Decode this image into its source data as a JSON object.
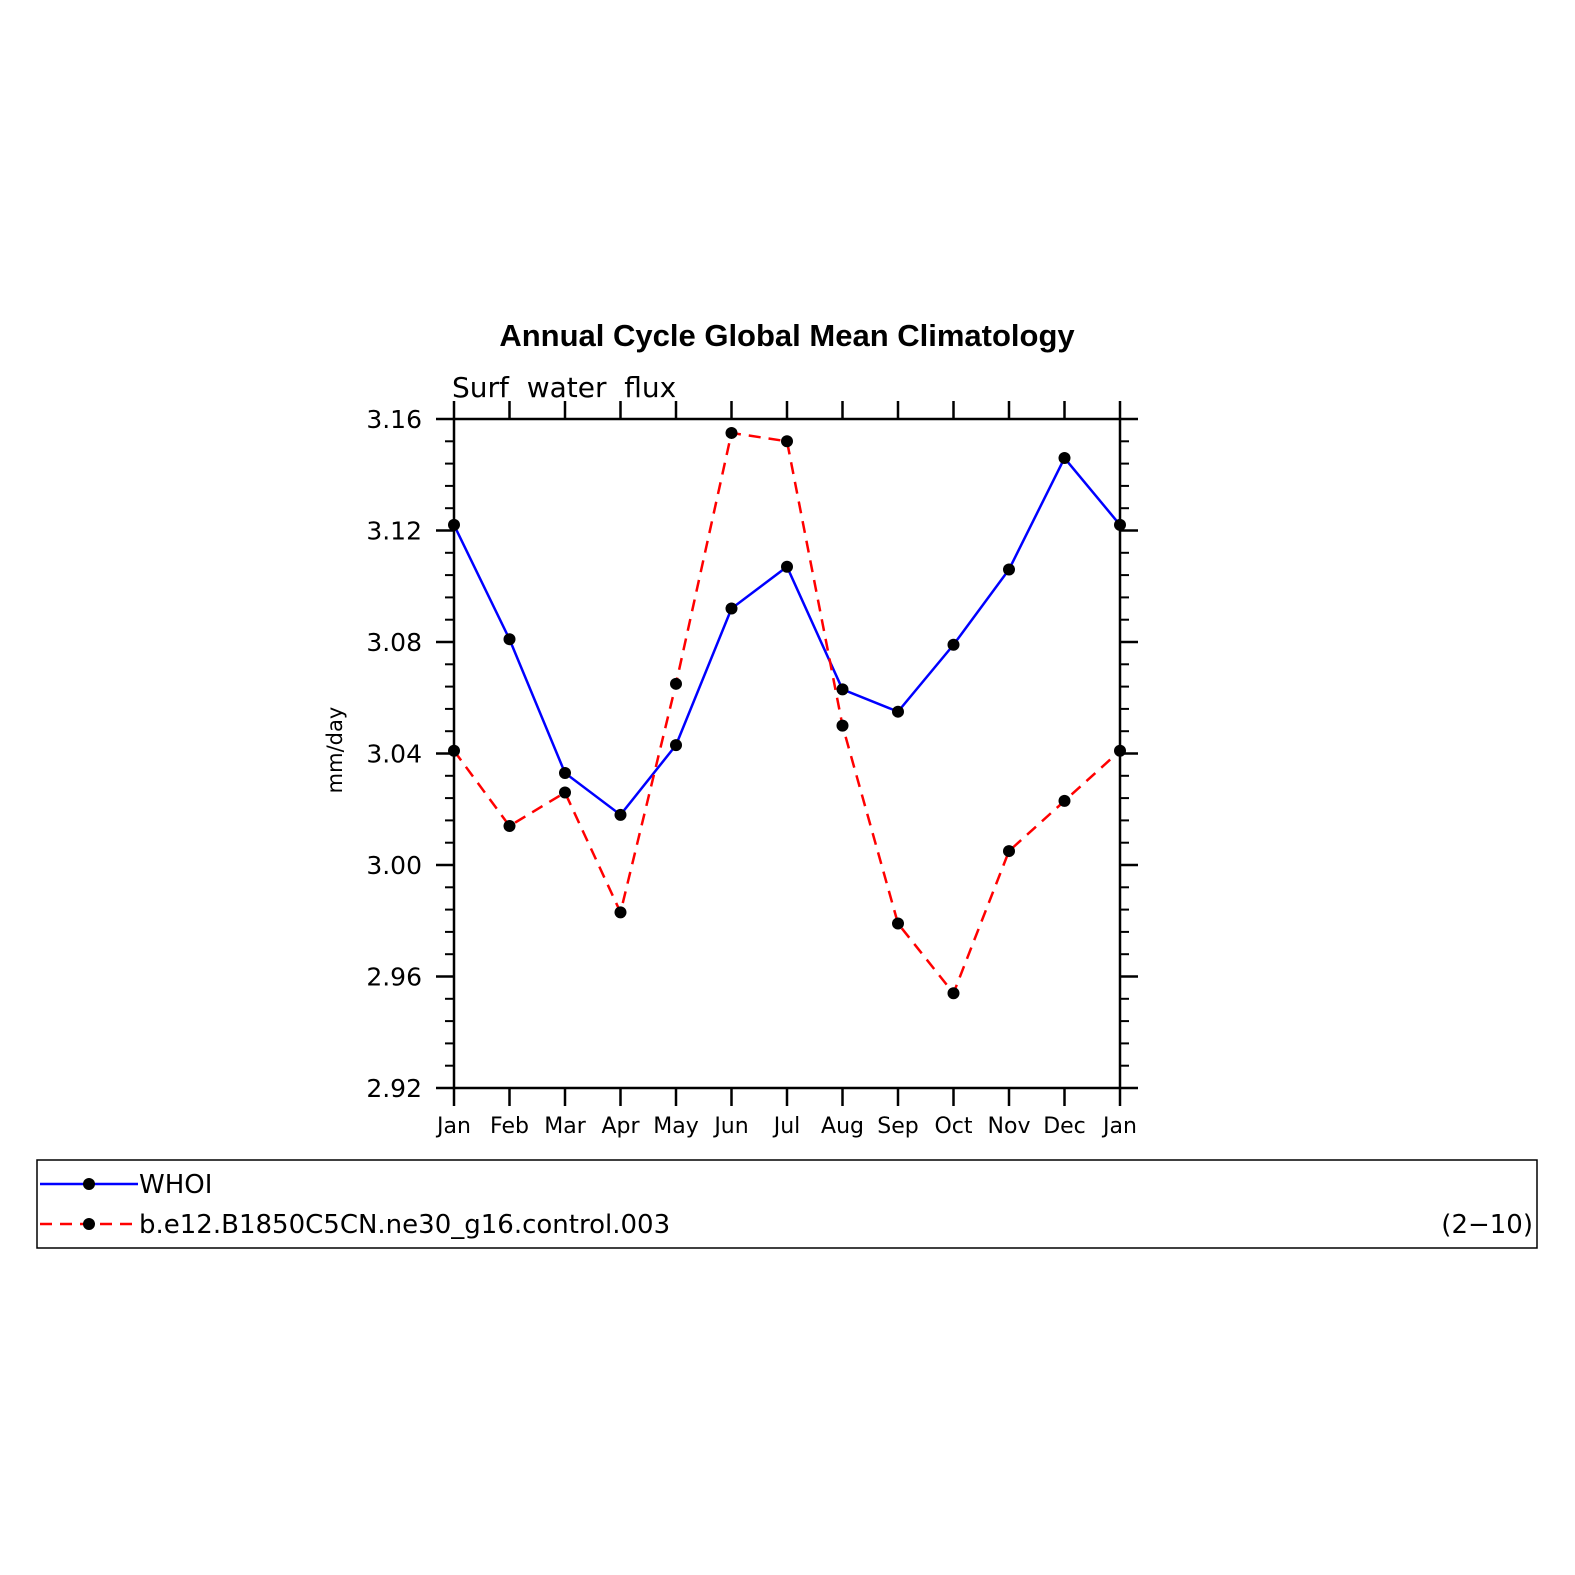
{
  "chart_data": {
    "type": "line",
    "title": "Annual Cycle Global Mean Climatology",
    "subtitle": "Surf  water  flux",
    "ylabel": "mm/day",
    "xlabel": "",
    "categories": [
      "Jan",
      "Feb",
      "Mar",
      "Apr",
      "May",
      "Jun",
      "Jul",
      "Aug",
      "Sep",
      "Oct",
      "Nov",
      "Dec",
      "Jan"
    ],
    "ylim": [
      2.92,
      3.16
    ],
    "yticks": [
      "2.92",
      "2.96",
      "3.00",
      "3.04",
      "3.08",
      "3.12",
      "3.16"
    ],
    "grid": false,
    "legend_placement": "bottom",
    "series": [
      {
        "name": "WHOI",
        "color": "#0000ff",
        "dash": "solid",
        "values": [
          3.122,
          3.081,
          3.033,
          3.018,
          3.043,
          3.092,
          3.107,
          3.063,
          3.055,
          3.079,
          3.106,
          3.146,
          3.122
        ]
      },
      {
        "name": "b.e12.B1850C5CN.ne30_g16.control.003",
        "color": "#ff0000",
        "dash": "dashed",
        "values": [
          3.041,
          3.014,
          3.026,
          2.983,
          3.065,
          3.155,
          3.152,
          3.05,
          2.979,
          2.954,
          3.005,
          3.023,
          3.041
        ]
      }
    ],
    "annotation": "(2−10)"
  }
}
